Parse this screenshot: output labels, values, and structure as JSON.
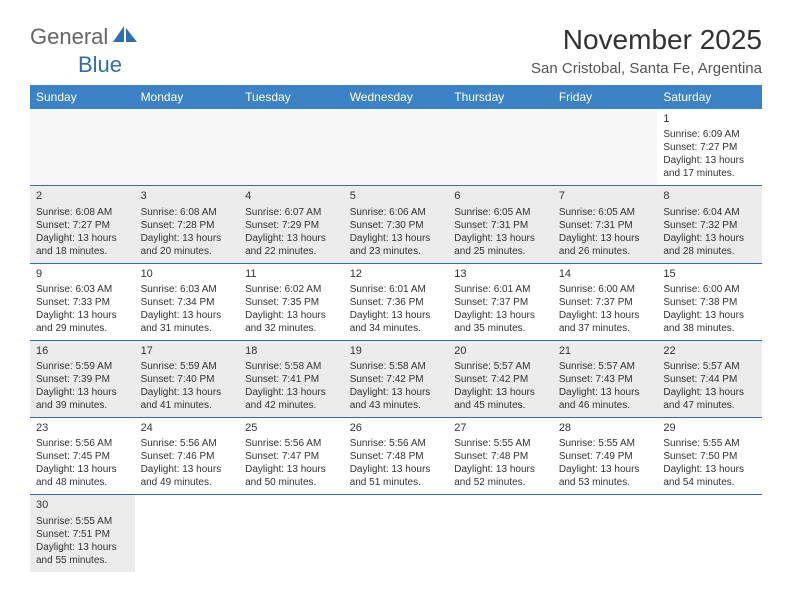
{
  "logo": {
    "part1": "General",
    "part2": "Blue"
  },
  "title": "November 2025",
  "location": "San Cristobal, Santa Fe, Argentina",
  "dayHeaders": [
    "Sunday",
    "Monday",
    "Tuesday",
    "Wednesday",
    "Thursday",
    "Friday",
    "Saturday"
  ],
  "colors": {
    "headerBg": "#3b82c7",
    "rule": "#2d6fb0",
    "shaded": "#ececec"
  },
  "weeks": [
    [
      null,
      null,
      null,
      null,
      null,
      null,
      {
        "n": "1",
        "rise": "Sunrise: 6:09 AM",
        "set": "Sunset: 7:27 PM",
        "day": "Daylight: 13 hours and 17 minutes."
      }
    ],
    [
      {
        "n": "2",
        "rise": "Sunrise: 6:08 AM",
        "set": "Sunset: 7:27 PM",
        "day": "Daylight: 13 hours and 18 minutes.",
        "shaded": true
      },
      {
        "n": "3",
        "rise": "Sunrise: 6:08 AM",
        "set": "Sunset: 7:28 PM",
        "day": "Daylight: 13 hours and 20 minutes.",
        "shaded": true
      },
      {
        "n": "4",
        "rise": "Sunrise: 6:07 AM",
        "set": "Sunset: 7:29 PM",
        "day": "Daylight: 13 hours and 22 minutes.",
        "shaded": true
      },
      {
        "n": "5",
        "rise": "Sunrise: 6:06 AM",
        "set": "Sunset: 7:30 PM",
        "day": "Daylight: 13 hours and 23 minutes.",
        "shaded": true
      },
      {
        "n": "6",
        "rise": "Sunrise: 6:05 AM",
        "set": "Sunset: 7:31 PM",
        "day": "Daylight: 13 hours and 25 minutes.",
        "shaded": true
      },
      {
        "n": "7",
        "rise": "Sunrise: 6:05 AM",
        "set": "Sunset: 7:31 PM",
        "day": "Daylight: 13 hours and 26 minutes.",
        "shaded": true
      },
      {
        "n": "8",
        "rise": "Sunrise: 6:04 AM",
        "set": "Sunset: 7:32 PM",
        "day": "Daylight: 13 hours and 28 minutes.",
        "shaded": true
      }
    ],
    [
      {
        "n": "9",
        "rise": "Sunrise: 6:03 AM",
        "set": "Sunset: 7:33 PM",
        "day": "Daylight: 13 hours and 29 minutes."
      },
      {
        "n": "10",
        "rise": "Sunrise: 6:03 AM",
        "set": "Sunset: 7:34 PM",
        "day": "Daylight: 13 hours and 31 minutes."
      },
      {
        "n": "11",
        "rise": "Sunrise: 6:02 AM",
        "set": "Sunset: 7:35 PM",
        "day": "Daylight: 13 hours and 32 minutes."
      },
      {
        "n": "12",
        "rise": "Sunrise: 6:01 AM",
        "set": "Sunset: 7:36 PM",
        "day": "Daylight: 13 hours and 34 minutes."
      },
      {
        "n": "13",
        "rise": "Sunrise: 6:01 AM",
        "set": "Sunset: 7:37 PM",
        "day": "Daylight: 13 hours and 35 minutes."
      },
      {
        "n": "14",
        "rise": "Sunrise: 6:00 AM",
        "set": "Sunset: 7:37 PM",
        "day": "Daylight: 13 hours and 37 minutes."
      },
      {
        "n": "15",
        "rise": "Sunrise: 6:00 AM",
        "set": "Sunset: 7:38 PM",
        "day": "Daylight: 13 hours and 38 minutes."
      }
    ],
    [
      {
        "n": "16",
        "rise": "Sunrise: 5:59 AM",
        "set": "Sunset: 7:39 PM",
        "day": "Daylight: 13 hours and 39 minutes.",
        "shaded": true
      },
      {
        "n": "17",
        "rise": "Sunrise: 5:59 AM",
        "set": "Sunset: 7:40 PM",
        "day": "Daylight: 13 hours and 41 minutes.",
        "shaded": true
      },
      {
        "n": "18",
        "rise": "Sunrise: 5:58 AM",
        "set": "Sunset: 7:41 PM",
        "day": "Daylight: 13 hours and 42 minutes.",
        "shaded": true
      },
      {
        "n": "19",
        "rise": "Sunrise: 5:58 AM",
        "set": "Sunset: 7:42 PM",
        "day": "Daylight: 13 hours and 43 minutes.",
        "shaded": true
      },
      {
        "n": "20",
        "rise": "Sunrise: 5:57 AM",
        "set": "Sunset: 7:42 PM",
        "day": "Daylight: 13 hours and 45 minutes.",
        "shaded": true
      },
      {
        "n": "21",
        "rise": "Sunrise: 5:57 AM",
        "set": "Sunset: 7:43 PM",
        "day": "Daylight: 13 hours and 46 minutes.",
        "shaded": true
      },
      {
        "n": "22",
        "rise": "Sunrise: 5:57 AM",
        "set": "Sunset: 7:44 PM",
        "day": "Daylight: 13 hours and 47 minutes.",
        "shaded": true
      }
    ],
    [
      {
        "n": "23",
        "rise": "Sunrise: 5:56 AM",
        "set": "Sunset: 7:45 PM",
        "day": "Daylight: 13 hours and 48 minutes."
      },
      {
        "n": "24",
        "rise": "Sunrise: 5:56 AM",
        "set": "Sunset: 7:46 PM",
        "day": "Daylight: 13 hours and 49 minutes."
      },
      {
        "n": "25",
        "rise": "Sunrise: 5:56 AM",
        "set": "Sunset: 7:47 PM",
        "day": "Daylight: 13 hours and 50 minutes."
      },
      {
        "n": "26",
        "rise": "Sunrise: 5:56 AM",
        "set": "Sunset: 7:48 PM",
        "day": "Daylight: 13 hours and 51 minutes."
      },
      {
        "n": "27",
        "rise": "Sunrise: 5:55 AM",
        "set": "Sunset: 7:48 PM",
        "day": "Daylight: 13 hours and 52 minutes."
      },
      {
        "n": "28",
        "rise": "Sunrise: 5:55 AM",
        "set": "Sunset: 7:49 PM",
        "day": "Daylight: 13 hours and 53 minutes."
      },
      {
        "n": "29",
        "rise": "Sunrise: 5:55 AM",
        "set": "Sunset: 7:50 PM",
        "day": "Daylight: 13 hours and 54 minutes."
      }
    ],
    [
      {
        "n": "30",
        "rise": "Sunrise: 5:55 AM",
        "set": "Sunset: 7:51 PM",
        "day": "Daylight: 13 hours and 55 minutes.",
        "shaded": true
      },
      null,
      null,
      null,
      null,
      null,
      null
    ]
  ]
}
